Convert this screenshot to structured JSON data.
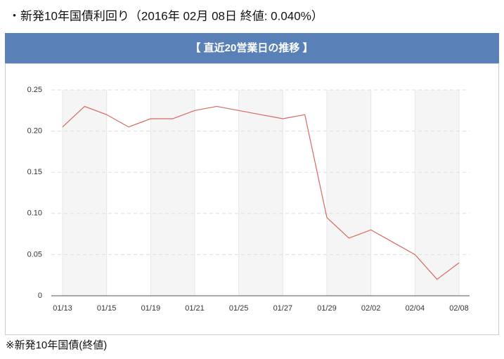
{
  "chart_data": {
    "type": "line",
    "title": "・新発10年国債利回り（2016年 02月 08日 終値: 0.040%）",
    "subtitle": "【 直近20営業日の推移 】",
    "note": "※新発10年国債(終値)",
    "categories": [
      "01/13",
      null,
      "01/15",
      null,
      "01/19",
      null,
      "01/21",
      null,
      "01/25",
      null,
      "01/27",
      null,
      "01/29",
      null,
      "02/02",
      null,
      "02/04",
      null,
      "02/08"
    ],
    "series": [
      {
        "color": "#d9685f",
        "values": [
          0.205,
          0.23,
          0.22,
          0.205,
          0.215,
          0.215,
          0.225,
          0.23,
          0.225,
          0.22,
          0.215,
          0.22,
          0.095,
          0.07,
          0.08,
          0.065,
          0.05,
          0.02,
          0.04
        ]
      }
    ],
    "ylim": [
      0,
      0.25
    ],
    "yticks": [
      0,
      0.05,
      {
        "value": 0.1,
        "label": "0.10"
      },
      0.15,
      {
        "value": 0.2,
        "label": "0.20"
      },
      0.25
    ],
    "grid": true
  }
}
